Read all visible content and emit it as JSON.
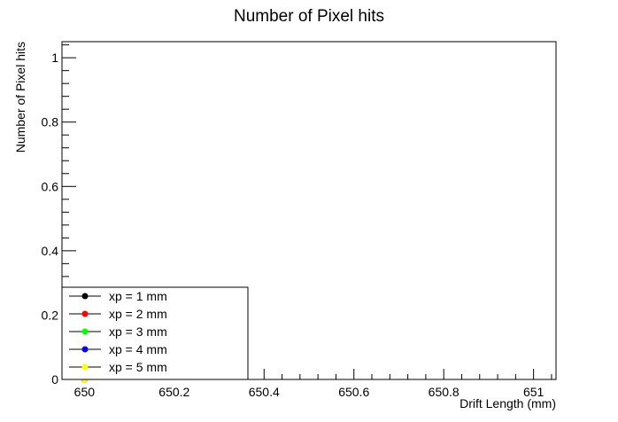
{
  "chart_data": {
    "type": "scatter",
    "title": "Number of Pixel hits",
    "xlabel": "Drift Length (mm)",
    "ylabel": "Number of Pixel hits",
    "xlim": [
      649.95,
      651.05
    ],
    "ylim": [
      0,
      1.05
    ],
    "x_major_ticks": [
      650,
      650.2,
      650.4,
      650.6,
      650.8,
      651
    ],
    "x_tick_labels": [
      "650",
      "650.2",
      "650.4",
      "650.6",
      "650.8",
      "651"
    ],
    "y_major_ticks": [
      0,
      0.2,
      0.4,
      0.6,
      0.8,
      1
    ],
    "y_tick_labels": [
      "0",
      "0.2",
      "0.4",
      "0.6",
      "0.8",
      "1"
    ],
    "grid": false,
    "legend_position": "bottom-left",
    "series": [
      {
        "name": "xp = 1 mm",
        "color": "#000000",
        "x": [
          650
        ],
        "y": [
          0
        ]
      },
      {
        "name": "xp = 2 mm",
        "color": "#ff0000",
        "x": [
          650
        ],
        "y": [
          0
        ]
      },
      {
        "name": "xp = 3 mm",
        "color": "#00ff00",
        "x": [
          650
        ],
        "y": [
          0
        ]
      },
      {
        "name": "xp = 4 mm",
        "color": "#0000ff",
        "x": [
          650
        ],
        "y": [
          0
        ]
      },
      {
        "name": "xp = 5 mm",
        "color": "#ffff00",
        "x": [
          650
        ],
        "y": [
          0
        ]
      }
    ]
  }
}
